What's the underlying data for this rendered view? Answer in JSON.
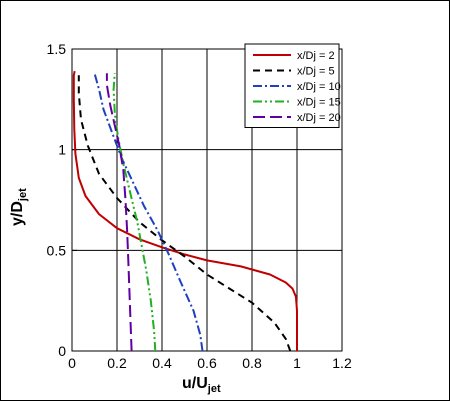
{
  "chart_data": {
    "type": "line",
    "xlabel": "u/U",
    "xlabel_sub": "jet",
    "ylabel": "y/D",
    "ylabel_sub": "jet",
    "xlim": [
      0,
      1.2
    ],
    "ylim": [
      0,
      1.5
    ],
    "x_ticks": [
      "0",
      "0.2",
      "0.4",
      "0.6",
      "0.8",
      "1",
      "1.2"
    ],
    "y_ticks": [
      "0",
      "0.5",
      "1",
      "1.5"
    ],
    "x_tick_values": [
      0,
      0.2,
      0.4,
      0.6,
      0.8,
      1.0,
      1.2
    ],
    "y_tick_values": [
      0,
      0.5,
      1.0,
      1.5
    ],
    "grid": true,
    "legend_position": "top-right",
    "series": [
      {
        "name": "x/Dj = 2",
        "color": "#c00000",
        "dash": "solid",
        "points": [
          [
            1.0,
            0.0
          ],
          [
            1.0,
            0.2
          ],
          [
            0.995,
            0.27
          ],
          [
            0.98,
            0.31
          ],
          [
            0.95,
            0.34
          ],
          [
            0.88,
            0.38
          ],
          [
            0.75,
            0.42
          ],
          [
            0.6,
            0.45
          ],
          [
            0.5,
            0.48
          ],
          [
            0.4,
            0.515
          ],
          [
            0.3,
            0.555
          ],
          [
            0.2,
            0.61
          ],
          [
            0.12,
            0.68
          ],
          [
            0.06,
            0.77
          ],
          [
            0.03,
            0.86
          ],
          [
            0.015,
            0.98
          ],
          [
            0.01,
            1.1
          ],
          [
            0.008,
            1.25
          ],
          [
            0.008,
            1.37
          ],
          [
            0.012,
            1.39
          ]
        ]
      },
      {
        "name": "x/Dj = 5",
        "color": "#000000",
        "dash": "dashed",
        "points": [
          [
            0.97,
            0.0
          ],
          [
            0.95,
            0.06
          ],
          [
            0.9,
            0.14
          ],
          [
            0.8,
            0.24
          ],
          [
            0.7,
            0.31
          ],
          [
            0.6,
            0.38
          ],
          [
            0.5,
            0.47
          ],
          [
            0.4,
            0.55
          ],
          [
            0.3,
            0.64
          ],
          [
            0.2,
            0.76
          ],
          [
            0.12,
            0.88
          ],
          [
            0.07,
            1.02
          ],
          [
            0.04,
            1.15
          ],
          [
            0.03,
            1.28
          ],
          [
            0.03,
            1.37
          ]
        ]
      },
      {
        "name": "x/Dj = 10",
        "color": "#2040c0",
        "dash": "dashdot",
        "points": [
          [
            0.58,
            0.0
          ],
          [
            0.57,
            0.08
          ],
          [
            0.54,
            0.2
          ],
          [
            0.48,
            0.35
          ],
          [
            0.43,
            0.48
          ],
          [
            0.38,
            0.6
          ],
          [
            0.32,
            0.72
          ],
          [
            0.27,
            0.84
          ],
          [
            0.22,
            0.96
          ],
          [
            0.18,
            1.08
          ],
          [
            0.14,
            1.2
          ],
          [
            0.12,
            1.3
          ],
          [
            0.1,
            1.38
          ]
        ]
      },
      {
        "name": "x/Dj = 15",
        "color": "#20b020",
        "dash": "dashdotdot",
        "points": [
          [
            0.37,
            0.0
          ],
          [
            0.365,
            0.1
          ],
          [
            0.35,
            0.25
          ],
          [
            0.33,
            0.4
          ],
          [
            0.31,
            0.52
          ],
          [
            0.29,
            0.64
          ],
          [
            0.26,
            0.78
          ],
          [
            0.23,
            0.92
          ],
          [
            0.205,
            1.06
          ],
          [
            0.19,
            1.18
          ],
          [
            0.185,
            1.3
          ],
          [
            0.19,
            1.38
          ]
        ]
      },
      {
        "name": "x/Dj = 20",
        "color": "#6000a0",
        "dash": "longdash",
        "points": [
          [
            0.265,
            0.0
          ],
          [
            0.26,
            0.15
          ],
          [
            0.255,
            0.3
          ],
          [
            0.25,
            0.45
          ],
          [
            0.245,
            0.6
          ],
          [
            0.238,
            0.75
          ],
          [
            0.228,
            0.9
          ],
          [
            0.21,
            1.02
          ],
          [
            0.19,
            1.12
          ],
          [
            0.17,
            1.22
          ],
          [
            0.155,
            1.32
          ],
          [
            0.155,
            1.38
          ]
        ]
      }
    ]
  }
}
